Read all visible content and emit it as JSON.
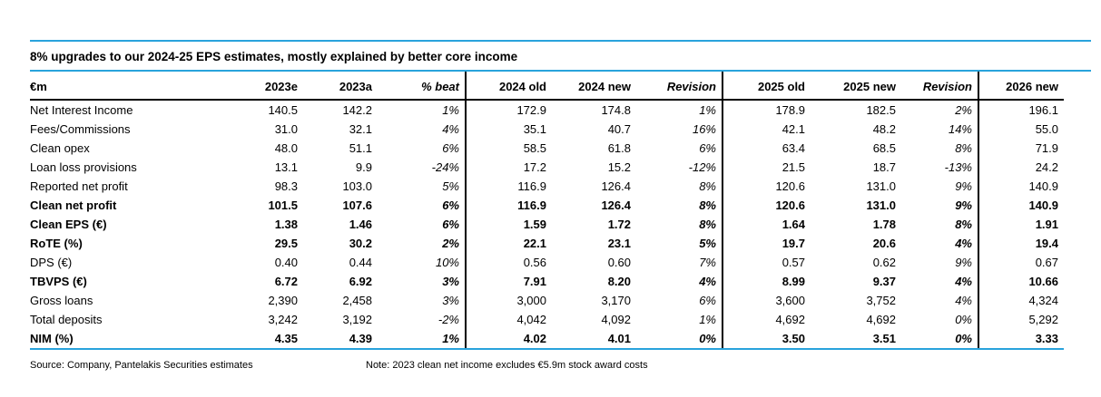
{
  "title": "8% upgrades to our 2024-25 EPS estimates, mostly explained by better core income",
  "colors": {
    "accent_blue": "#29a3dc"
  },
  "table": {
    "columns": [
      "€m",
      "2023e",
      "2023a",
      "% beat",
      "2024 old",
      "2024 new",
      "Revision",
      "2025 old",
      "2025 new",
      "Revision",
      "2026 new"
    ],
    "rows": [
      {
        "label": "Net Interest Income",
        "bold": false,
        "values": [
          "140.5",
          "142.2",
          "1%",
          "172.9",
          "174.8",
          "1%",
          "178.9",
          "182.5",
          "2%",
          "196.1"
        ]
      },
      {
        "label": "Fees/Commissions",
        "bold": false,
        "values": [
          "31.0",
          "32.1",
          "4%",
          "35.1",
          "40.7",
          "16%",
          "42.1",
          "48.2",
          "14%",
          "55.0"
        ]
      },
      {
        "label": "Clean opex",
        "bold": false,
        "values": [
          "48.0",
          "51.1",
          "6%",
          "58.5",
          "61.8",
          "6%",
          "63.4",
          "68.5",
          "8%",
          "71.9"
        ]
      },
      {
        "label": "Loan loss provisions",
        "bold": false,
        "values": [
          "13.1",
          "9.9",
          "-24%",
          "17.2",
          "15.2",
          "-12%",
          "21.5",
          "18.7",
          "-13%",
          "24.2"
        ]
      },
      {
        "label": "Reported net profit",
        "bold": false,
        "values": [
          "98.3",
          "103.0",
          "5%",
          "116.9",
          "126.4",
          "8%",
          "120.6",
          "131.0",
          "9%",
          "140.9"
        ]
      },
      {
        "label": "Clean net profit",
        "bold": true,
        "values": [
          "101.5",
          "107.6",
          "6%",
          "116.9",
          "126.4",
          "8%",
          "120.6",
          "131.0",
          "9%",
          "140.9"
        ]
      },
      {
        "label": "Clean EPS (€)",
        "bold": true,
        "values": [
          "1.38",
          "1.46",
          "6%",
          "1.59",
          "1.72",
          "8%",
          "1.64",
          "1.78",
          "8%",
          "1.91"
        ]
      },
      {
        "label": "RoTE (%)",
        "bold": true,
        "values": [
          "29.5",
          "30.2",
          "2%",
          "22.1",
          "23.1",
          "5%",
          "19.7",
          "20.6",
          "4%",
          "19.4"
        ]
      },
      {
        "label": "DPS (€)",
        "bold": false,
        "values": [
          "0.40",
          "0.44",
          "10%",
          "0.56",
          "0.60",
          "7%",
          "0.57",
          "0.62",
          "9%",
          "0.67"
        ]
      },
      {
        "label": "TBVPS (€)",
        "bold": true,
        "values": [
          "6.72",
          "6.92",
          "3%",
          "7.91",
          "8.20",
          "4%",
          "8.99",
          "9.37",
          "4%",
          "10.66"
        ]
      },
      {
        "label": "Gross loans",
        "bold": false,
        "values": [
          "2,390",
          "2,458",
          "3%",
          "3,000",
          "3,170",
          "6%",
          "3,600",
          "3,752",
          "4%",
          "4,324"
        ]
      },
      {
        "label": "Total deposits",
        "bold": false,
        "values": [
          "3,242",
          "3,192",
          "-2%",
          "4,042",
          "4,092",
          "1%",
          "4,692",
          "4,692",
          "0%",
          "5,292"
        ]
      },
      {
        "label": "NIM (%)",
        "bold": true,
        "values": [
          "4.35",
          "4.39",
          "1%",
          "4.02",
          "4.01",
          "0%",
          "3.50",
          "3.51",
          "0%",
          "3.33"
        ]
      }
    ]
  },
  "footer": {
    "source": "Source: Company, Pantelakis Securities estimates",
    "note": "Note: 2023 clean net income excludes €5.9m stock award costs"
  }
}
